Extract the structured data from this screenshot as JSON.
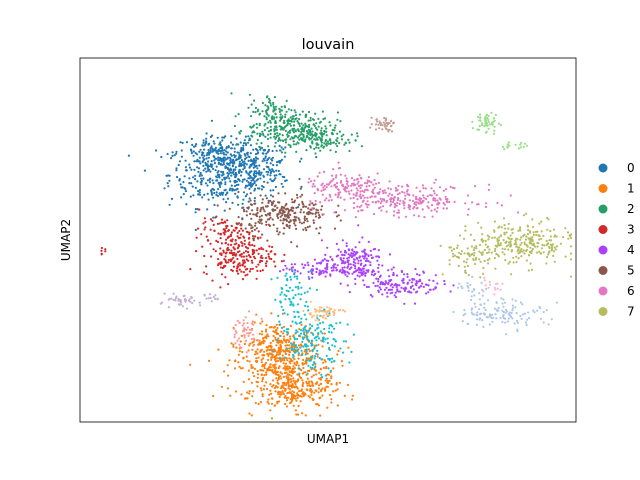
{
  "chart_data": {
    "type": "scatter",
    "title": "louvain",
    "xlabel": "UMAP1",
    "ylabel": "UMAP2",
    "xlim": [
      0,
      100
    ],
    "ylim": [
      0,
      100
    ],
    "ticks": false,
    "grid": false,
    "legend_position": "right",
    "series": [
      {
        "name": "0",
        "color": "#1f77b4",
        "clusters": [
          {
            "cx": 29,
            "cy": 68,
            "sx": 5.5,
            "sy": 4.5,
            "n": 380
          },
          {
            "cx": 35,
            "cy": 70,
            "sx": 4,
            "sy": 3.5,
            "n": 200
          },
          {
            "cx": 27,
            "cy": 74,
            "sx": 4,
            "sy": 2.5,
            "n": 120
          }
        ]
      },
      {
        "name": "1",
        "color": "#ff7f0e",
        "clusters": [
          {
            "cx": 41,
            "cy": 15,
            "sx": 5,
            "sy": 4.5,
            "n": 450
          },
          {
            "cx": 44,
            "cy": 8,
            "sx": 4,
            "sy": 2.5,
            "n": 160
          },
          {
            "cx": 40,
            "cy": 22,
            "sx": 3,
            "sy": 3,
            "n": 140
          }
        ]
      },
      {
        "name": "2",
        "color": "#279e68",
        "clusters": [
          {
            "cx": 43,
            "cy": 80,
            "sx": 4.5,
            "sy": 2.5,
            "n": 280
          },
          {
            "cx": 39,
            "cy": 85,
            "sx": 2.5,
            "sy": 2.5,
            "n": 90
          },
          {
            "cx": 50,
            "cy": 77,
            "sx": 2.5,
            "sy": 1.5,
            "n": 60
          }
        ]
      },
      {
        "name": "3",
        "color": "#d62728",
        "clusters": [
          {
            "cx": 32,
            "cy": 46,
            "sx": 3.5,
            "sy": 3,
            "n": 220
          },
          {
            "cx": 29,
            "cy": 53,
            "sx": 2.5,
            "sy": 1.5,
            "n": 60
          }
        ]
      },
      {
        "name": "4",
        "color": "#aa40fc",
        "clusters": [
          {
            "cx": 55,
            "cy": 44,
            "sx": 3,
            "sy": 2.8,
            "n": 180
          },
          {
            "cx": 48,
            "cy": 42,
            "sx": 3.5,
            "sy": 1.2,
            "n": 80
          },
          {
            "cx": 65,
            "cy": 38,
            "sx": 4,
            "sy": 1.8,
            "n": 140
          }
        ]
      },
      {
        "name": "5",
        "color": "#8c564b",
        "clusters": [
          {
            "cx": 41,
            "cy": 57,
            "sx": 4.5,
            "sy": 2.8,
            "n": 260
          }
        ]
      },
      {
        "name": "6",
        "color": "#e377c2",
        "clusters": [
          {
            "cx": 54,
            "cy": 64,
            "sx": 4.5,
            "sy": 2.2,
            "n": 150
          },
          {
            "cx": 66,
            "cy": 61,
            "sx": 7,
            "sy": 2,
            "n": 220
          }
        ]
      },
      {
        "name": "7",
        "color": "#b5bd61",
        "clusters": [
          {
            "cx": 89,
            "cy": 49,
            "sx": 5,
            "sy": 3,
            "n": 260
          },
          {
            "cx": 78,
            "cy": 45,
            "sx": 2.5,
            "sy": 2.5,
            "n": 60
          }
        ]
      }
    ],
    "unlabeled_series": [
      {
        "color": "#17becf",
        "clusters": [
          {
            "cx": 47,
            "cy": 22,
            "sx": 3.2,
            "sy": 4,
            "n": 180
          },
          {
            "cx": 43,
            "cy": 35,
            "sx": 2,
            "sy": 3.5,
            "n": 70
          }
        ]
      },
      {
        "color": "#aec7e8",
        "clusters": [
          {
            "cx": 85,
            "cy": 30,
            "sx": 4.5,
            "sy": 2,
            "n": 120
          },
          {
            "cx": 79,
            "cy": 37,
            "sx": 1.5,
            "sy": 1.5,
            "n": 20
          }
        ]
      },
      {
        "color": "#98df8a",
        "clusters": [
          {
            "cx": 82,
            "cy": 82,
            "sx": 1.2,
            "sy": 1.5,
            "n": 50
          },
          {
            "cx": 88,
            "cy": 76,
            "sx": 2,
            "sy": 0.6,
            "n": 15
          }
        ]
      },
      {
        "color": "#c49c94",
        "clusters": [
          {
            "cx": 61,
            "cy": 82,
            "sx": 1.2,
            "sy": 1,
            "n": 40
          }
        ]
      },
      {
        "color": "#ffbb78",
        "clusters": [
          {
            "cx": 49,
            "cy": 30,
            "sx": 2,
            "sy": 1,
            "n": 50
          }
        ]
      },
      {
        "color": "#ff9896",
        "clusters": [
          {
            "cx": 33,
            "cy": 25,
            "sx": 1.5,
            "sy": 2.5,
            "n": 50
          }
        ]
      },
      {
        "color": "#c5b0d5",
        "clusters": [
          {
            "cx": 20,
            "cy": 33,
            "sx": 2,
            "sy": 0.8,
            "n": 40
          },
          {
            "cx": 26,
            "cy": 34,
            "sx": 1,
            "sy": 0.6,
            "n": 12
          }
        ]
      },
      {
        "color": "#f7b6d2",
        "clusters": [
          {
            "cx": 83,
            "cy": 37,
            "sx": 1.5,
            "sy": 1,
            "n": 15
          }
        ]
      },
      {
        "color": "#d62728",
        "clusters": [
          {
            "cx": 4.5,
            "cy": 47,
            "sx": 0.3,
            "sy": 0.4,
            "n": 6
          }
        ]
      }
    ]
  }
}
